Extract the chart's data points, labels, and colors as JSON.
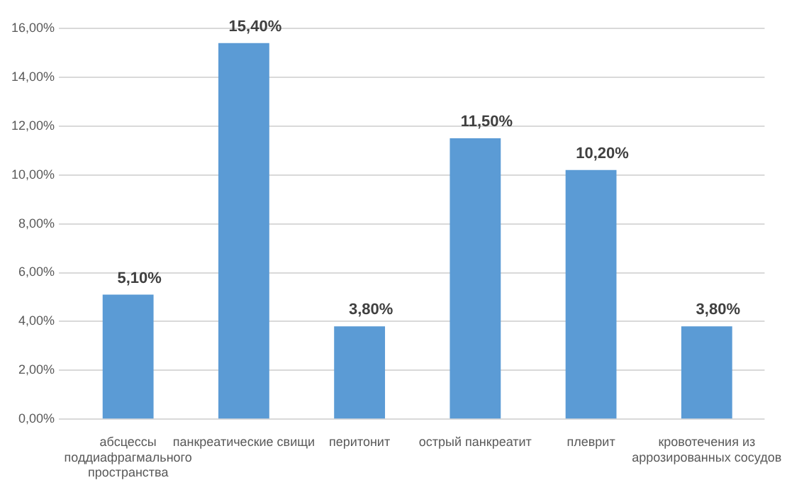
{
  "chart_data": {
    "type": "bar",
    "categories": [
      "абсцессы поддиафрагмального пространства",
      "панкреатические свищи",
      "перитонит",
      "острый панкреатит",
      "плеврит",
      "кровотечения из аррозированных сосудов"
    ],
    "values": [
      5.1,
      15.4,
      3.8,
      11.5,
      10.2,
      3.8
    ],
    "value_labels": [
      "5,10%",
      "15,40%",
      "3,80%",
      "11,50%",
      "10,20%",
      "3,80%"
    ],
    "color": "#5b9bd5",
    "ylim": [
      0,
      16
    ],
    "yticks": [
      {
        "value": 0,
        "label": "0,00%"
      },
      {
        "value": 2,
        "label": "2,00%"
      },
      {
        "value": 4,
        "label": "4,00%"
      },
      {
        "value": 6,
        "label": "6,00%"
      },
      {
        "value": 8,
        "label": "8,00%"
      },
      {
        "value": 10,
        "label": "10,00%"
      },
      {
        "value": 12,
        "label": "12,00%"
      },
      {
        "value": 14,
        "label": "14,00%"
      },
      {
        "value": 16,
        "label": "16,00%"
      }
    ],
    "grid": "y",
    "legend": false
  }
}
